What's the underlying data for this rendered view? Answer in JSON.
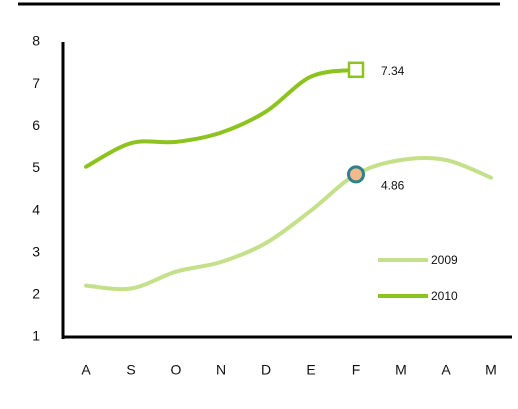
{
  "chart_data": {
    "type": "line",
    "categories": [
      "A",
      "S",
      "O",
      "N",
      "D",
      "E",
      "F",
      "M",
      "A",
      "M"
    ],
    "series": [
      {
        "name": "2009",
        "color": "#c4e08a",
        "marker": "circle",
        "marker_fill": "#f2b98c",
        "marker_stroke": "#2f7f8f",
        "labeled_point": 6,
        "values": [
          2.22,
          2.15,
          2.55,
          2.78,
          3.23,
          4.0,
          4.86,
          5.2,
          5.2,
          4.78
        ]
      },
      {
        "name": "2010",
        "color": "#8cc31f",
        "marker": "square",
        "marker_fill": "#ffffff",
        "marker_stroke": "#8cc31f",
        "labeled_point": 6,
        "values": [
          5.04,
          5.6,
          5.63,
          5.85,
          6.35,
          7.18,
          7.34,
          null,
          null,
          null
        ]
      }
    ],
    "ylim": [
      1,
      8
    ],
    "yticks": [
      1,
      2,
      3,
      4,
      5,
      6,
      7,
      8
    ],
    "grid": false,
    "legend": "lower right"
  }
}
